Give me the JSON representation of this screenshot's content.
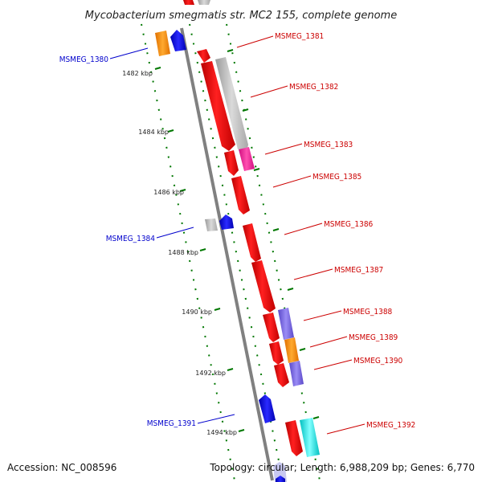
{
  "title": "Mycobacterium smegmatis str. MC2 155, complete genome",
  "footer": {
    "accession": "Accession: NC_008596",
    "summary": "Topology: circular; Length: 6,988,209 bp; Genes: 6,770"
  },
  "scale": {
    "ticks": [
      "1482 kbp",
      "1484 kbp",
      "1486 kbp",
      "1488 kbp",
      "1490 kbp",
      "1492 kbp",
      "1494 kbp"
    ]
  },
  "colors": {
    "label_red": "#cc0000",
    "label_blue": "#0000cc",
    "backbone": "#808080",
    "tick_green": "#007700",
    "red": "#ff0000",
    "grey": "#bbbbbb",
    "magenta": "#ff2fa0",
    "purple": "#7b68ee",
    "orange": "#ff8c00",
    "cyan": "#00e5e5",
    "blue": "#0000ee"
  },
  "gene_labels": {
    "red": [
      "MSMEG_1381",
      "MSMEG_1382",
      "MSMEG_1383",
      "MSMEG_1385",
      "MSMEG_1386",
      "MSMEG_1387",
      "MSMEG_1388",
      "MSMEG_1389",
      "MSMEG_1390",
      "MSMEG_1392"
    ],
    "blue": [
      "MSMEG_1380",
      "MSMEG_1384",
      "MSMEG_1391"
    ]
  }
}
